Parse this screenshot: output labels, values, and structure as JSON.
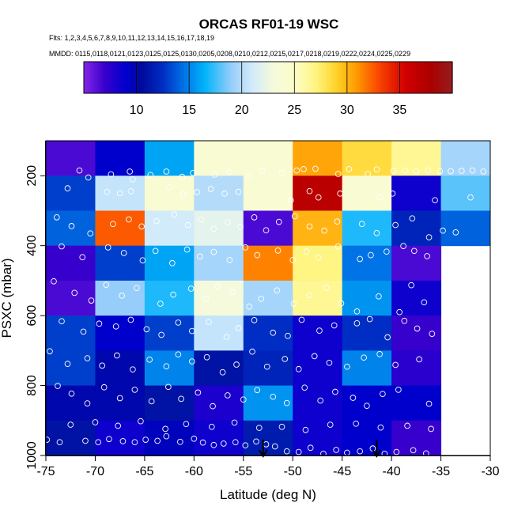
{
  "chart_data": {
    "type": "heatmap",
    "title": "ORCAS RF01-19 WSC",
    "flights_line": "Flts: 1,2,3,4,5,6,7,8,9,10,11,12,13,14,15,16,17,18,19",
    "dates_line": "MMDD: 0115,0118,0121,0123,0125,0125,0130,0205,0208,0210,0212,0215,0217,0218,0219,0222,0224,0225,0229",
    "xlabel": "Latitude (deg N)",
    "ylabel": "PSXC (mbar)",
    "xlim": [
      -75,
      -30
    ],
    "ylim": [
      1000,
      100
    ],
    "x_ticks": [
      -75,
      -70,
      -65,
      -60,
      -55,
      -50,
      -45,
      -40,
      -35,
      -30
    ],
    "x_tick_labels": [
      "-75",
      "-70",
      "-65",
      "-60",
      "-55",
      "-50",
      "-45",
      "-40",
      "-35",
      "-30"
    ],
    "y_ticks": [
      200,
      400,
      600,
      800,
      1000
    ],
    "y_tick_labels": [
      "200",
      "400",
      "600",
      "800",
      "1000"
    ],
    "colorbar": {
      "min": 5,
      "max": 40,
      "ticks": [
        10,
        15,
        20,
        25,
        30,
        35
      ],
      "tick_labels": [
        "10",
        "15",
        "20",
        "25",
        "30",
        "35"
      ]
    },
    "cell_size": {
      "dlat": 5,
      "dp": 100
    },
    "cells": [
      {
        "lat": -70,
        "p": 100,
        "v": 6.5
      },
      {
        "lat": -65,
        "p": 100,
        "v": 9
      },
      {
        "lat": -60,
        "p": 100,
        "v": 16
      },
      {
        "lat": -55,
        "p": 100,
        "v": 24
      },
      {
        "lat": -50,
        "p": 100,
        "v": 24
      },
      {
        "lat": -45,
        "p": 100,
        "v": 30.5
      },
      {
        "lat": -40,
        "p": 100,
        "v": 28.5
      },
      {
        "lat": -35,
        "p": 100,
        "v": 26.5
      },
      {
        "lat": -30,
        "p": 100,
        "v": 19.5
      },
      {
        "lat": -70,
        "p": 200,
        "v": 13
      },
      {
        "lat": -65,
        "p": 200,
        "v": 20.5
      },
      {
        "lat": -60,
        "p": 200,
        "v": 24
      },
      {
        "lat": -55,
        "p": 200,
        "v": 20
      },
      {
        "lat": -50,
        "p": 200,
        "v": 24
      },
      {
        "lat": -45,
        "p": 200,
        "v": 37
      },
      {
        "lat": -40,
        "p": 200,
        "v": 24
      },
      {
        "lat": -35,
        "p": 200,
        "v": 8.5
      },
      {
        "lat": -30,
        "p": 200,
        "v": 18
      },
      {
        "lat": -70,
        "p": 300,
        "v": 14
      },
      {
        "lat": -65,
        "p": 300,
        "v": 32.5
      },
      {
        "lat": -60,
        "p": 300,
        "v": 21
      },
      {
        "lat": -55,
        "p": 300,
        "v": 22
      },
      {
        "lat": -50,
        "p": 300,
        "v": 6.5
      },
      {
        "lat": -45,
        "p": 300,
        "v": 30
      },
      {
        "lat": -40,
        "p": 300,
        "v": 17
      },
      {
        "lat": -35,
        "p": 300,
        "v": 12
      },
      {
        "lat": -30,
        "p": 300,
        "v": 14
      },
      {
        "lat": -70,
        "p": 400,
        "v": 7
      },
      {
        "lat": -65,
        "p": 400,
        "v": 13
      },
      {
        "lat": -60,
        "p": 400,
        "v": 16
      },
      {
        "lat": -55,
        "p": 400,
        "v": 19.5
      },
      {
        "lat": -50,
        "p": 400,
        "v": 31.5
      },
      {
        "lat": -45,
        "p": 400,
        "v": 27
      },
      {
        "lat": -40,
        "p": 400,
        "v": 14.5
      },
      {
        "lat": -35,
        "p": 400,
        "v": 6.5
      },
      {
        "lat": -70,
        "p": 500,
        "v": 6.5
      },
      {
        "lat": -65,
        "p": 500,
        "v": 19
      },
      {
        "lat": -60,
        "p": 500,
        "v": 17
      },
      {
        "lat": -55,
        "p": 500,
        "v": 23
      },
      {
        "lat": -50,
        "p": 500,
        "v": 19.5
      },
      {
        "lat": -45,
        "p": 500,
        "v": 26.5
      },
      {
        "lat": -40,
        "p": 500,
        "v": 15.5
      },
      {
        "lat": -35,
        "p": 500,
        "v": 8.5
      },
      {
        "lat": -70,
        "p": 600,
        "v": 13
      },
      {
        "lat": -65,
        "p": 600,
        "v": 9
      },
      {
        "lat": -60,
        "p": 600,
        "v": 13
      },
      {
        "lat": -55,
        "p": 600,
        "v": 20.5
      },
      {
        "lat": -50,
        "p": 600,
        "v": 12.5
      },
      {
        "lat": -45,
        "p": 600,
        "v": 8.5
      },
      {
        "lat": -40,
        "p": 600,
        "v": 12.5
      },
      {
        "lat": -35,
        "p": 600,
        "v": 7
      },
      {
        "lat": -70,
        "p": 700,
        "v": 13
      },
      {
        "lat": -65,
        "p": 700,
        "v": 10
      },
      {
        "lat": -60,
        "p": 700,
        "v": 15
      },
      {
        "lat": -55,
        "p": 700,
        "v": 11
      },
      {
        "lat": -50,
        "p": 700,
        "v": 12
      },
      {
        "lat": -45,
        "p": 700,
        "v": 8.5
      },
      {
        "lat": -40,
        "p": 700,
        "v": 15
      },
      {
        "lat": -35,
        "p": 700,
        "v": 7.5
      },
      {
        "lat": -70,
        "p": 800,
        "v": 10
      },
      {
        "lat": -65,
        "p": 800,
        "v": 10
      },
      {
        "lat": -60,
        "p": 800,
        "v": 11
      },
      {
        "lat": -55,
        "p": 800,
        "v": 8
      },
      {
        "lat": -50,
        "p": 800,
        "v": 15.5
      },
      {
        "lat": -45,
        "p": 800,
        "v": 8.5
      },
      {
        "lat": -40,
        "p": 800,
        "v": 9
      },
      {
        "lat": -35,
        "p": 800,
        "v": 9
      },
      {
        "lat": -70,
        "p": 900,
        "v": 11
      },
      {
        "lat": -65,
        "p": 900,
        "v": 8.5
      },
      {
        "lat": -60,
        "p": 900,
        "v": 9.5
      },
      {
        "lat": -55,
        "p": 900,
        "v": 8.5
      },
      {
        "lat": -50,
        "p": 900,
        "v": 11.5
      },
      {
        "lat": -45,
        "p": 900,
        "v": 8.5
      },
      {
        "lat": -40,
        "p": 900,
        "v": 9
      },
      {
        "lat": -35,
        "p": 900,
        "v": 7
      }
    ],
    "arrows_latitude": [
      -53,
      -41.5
    ],
    "sample_points": [
      [
        -71.6,
        185
      ],
      [
        -70.7,
        205
      ],
      [
        -68.4,
        196
      ],
      [
        -66.5,
        188
      ],
      [
        -66.2,
        210
      ],
      [
        -64.4,
        198
      ],
      [
        -62.8,
        188
      ],
      [
        -61.2,
        203
      ],
      [
        -60.1,
        192
      ],
      [
        -57.9,
        197
      ],
      [
        -56.4,
        189
      ],
      [
        -54.5,
        203
      ],
      [
        -53.1,
        186
      ],
      [
        -51.1,
        192
      ],
      [
        -49.6,
        185
      ],
      [
        -48.9,
        181
      ],
      [
        -47.7,
        180
      ],
      [
        -45.4,
        195
      ],
      [
        -44.3,
        181
      ],
      [
        -42.4,
        195
      ],
      [
        -41.5,
        182
      ],
      [
        -39.8,
        186
      ],
      [
        -38.6,
        185
      ],
      [
        -37.5,
        187
      ],
      [
        -36.3,
        185
      ],
      [
        -35.1,
        187
      ],
      [
        -34.0,
        187
      ],
      [
        -32.9,
        186
      ],
      [
        -31.8,
        185
      ],
      [
        -30.7,
        188
      ],
      [
        -72.8,
        236
      ],
      [
        -68.8,
        246
      ],
      [
        -67.5,
        250
      ],
      [
        -66.4,
        244
      ],
      [
        -62.5,
        233
      ],
      [
        -61.1,
        253
      ],
      [
        -59.7,
        247
      ],
      [
        -58.3,
        238
      ],
      [
        -56.9,
        251
      ],
      [
        -55.5,
        246
      ],
      [
        -50.2,
        270
      ],
      [
        -48.3,
        244
      ],
      [
        -47.4,
        262
      ],
      [
        -45.2,
        251
      ],
      [
        -41.2,
        262
      ],
      [
        -39.9,
        251
      ],
      [
        -35.6,
        270
      ],
      [
        -32.0,
        262
      ],
      [
        -73.9,
        319
      ],
      [
        -72.4,
        344
      ],
      [
        -70.5,
        365
      ],
      [
        -68.2,
        338
      ],
      [
        -66.6,
        325
      ],
      [
        -65.3,
        345
      ],
      [
        -63.8,
        330
      ],
      [
        -62.0,
        311
      ],
      [
        -60.6,
        341
      ],
      [
        -59.3,
        325
      ],
      [
        -58.0,
        352
      ],
      [
        -56.6,
        333
      ],
      [
        -55.3,
        346
      ],
      [
        -53.9,
        319
      ],
      [
        -52.7,
        356
      ],
      [
        -51.4,
        332
      ],
      [
        -49.8,
        316
      ],
      [
        -48.3,
        345
      ],
      [
        -46.8,
        357
      ],
      [
        -45.5,
        331
      ],
      [
        -43.0,
        338
      ],
      [
        -41.5,
        364
      ],
      [
        -39.6,
        341
      ],
      [
        -37.9,
        322
      ],
      [
        -36.2,
        376
      ],
      [
        -34.8,
        357
      ],
      [
        -33.5,
        362
      ],
      [
        -73.4,
        402
      ],
      [
        -71.3,
        433
      ],
      [
        -68.7,
        405
      ],
      [
        -67.1,
        421
      ],
      [
        -65.2,
        442
      ],
      [
        -63.9,
        415
      ],
      [
        -62.2,
        450
      ],
      [
        -60.7,
        411
      ],
      [
        -59.4,
        431
      ],
      [
        -58.0,
        418
      ],
      [
        -56.4,
        441
      ],
      [
        -54.8,
        405
      ],
      [
        -53.6,
        427
      ],
      [
        -51.5,
        414
      ],
      [
        -50.0,
        441
      ],
      [
        -48.6,
        417
      ],
      [
        -47.4,
        434
      ],
      [
        -45.4,
        402
      ],
      [
        -43.2,
        438
      ],
      [
        -42.1,
        427
      ],
      [
        -40.5,
        417
      ],
      [
        -38.8,
        401
      ],
      [
        -37.7,
        415
      ],
      [
        -36.4,
        430
      ],
      [
        -74.2,
        502
      ],
      [
        -72.1,
        535
      ],
      [
        -70.4,
        557
      ],
      [
        -68.9,
        512
      ],
      [
        -67.3,
        543
      ],
      [
        -65.8,
        521
      ],
      [
        -63.4,
        566
      ],
      [
        -62.1,
        540
      ],
      [
        -60.3,
        523
      ],
      [
        -58.8,
        552
      ],
      [
        -57.6,
        517
      ],
      [
        -56.1,
        533
      ],
      [
        -54.4,
        574
      ],
      [
        -53.2,
        552
      ],
      [
        -51.6,
        528
      ],
      [
        -49.9,
        566
      ],
      [
        -48.3,
        542
      ],
      [
        -46.6,
        520
      ],
      [
        -45.1,
        565
      ],
      [
        -43.5,
        588
      ],
      [
        -41.3,
        545
      ],
      [
        -39.2,
        590
      ],
      [
        -38.0,
        513
      ],
      [
        -36.7,
        562
      ],
      [
        -73.4,
        616
      ],
      [
        -71.2,
        646
      ],
      [
        -69.6,
        623
      ],
      [
        -67.9,
        631
      ],
      [
        -66.4,
        612
      ],
      [
        -64.8,
        639
      ],
      [
        -63.3,
        655
      ],
      [
        -61.6,
        620
      ],
      [
        -60.2,
        644
      ],
      [
        -58.5,
        618
      ],
      [
        -56.7,
        661
      ],
      [
        -55.5,
        636
      ],
      [
        -53.9,
        613
      ],
      [
        -52.0,
        649
      ],
      [
        -50.5,
        658
      ],
      [
        -49.1,
        612
      ],
      [
        -47.3,
        643
      ],
      [
        -45.8,
        628
      ],
      [
        -43.5,
        622
      ],
      [
        -42.2,
        610
      ],
      [
        -40.4,
        662
      ],
      [
        -38.7,
        615
      ],
      [
        -37.4,
        637
      ],
      [
        -35.9,
        652
      ],
      [
        -74.6,
        702
      ],
      [
        -72.8,
        738
      ],
      [
        -70.8,
        722
      ],
      [
        -69.3,
        743
      ],
      [
        -67.8,
        714
      ],
      [
        -66.2,
        754
      ],
      [
        -64.5,
        726
      ],
      [
        -62.8,
        745
      ],
      [
        -61.6,
        711
      ],
      [
        -60.2,
        731
      ],
      [
        -58.7,
        719
      ],
      [
        -57.1,
        762
      ],
      [
        -55.7,
        740
      ],
      [
        -54.1,
        703
      ],
      [
        -52.6,
        746
      ],
      [
        -50.8,
        724
      ],
      [
        -49.4,
        753
      ],
      [
        -47.8,
        716
      ],
      [
        -46.3,
        735
      ],
      [
        -44.5,
        746
      ],
      [
        -42.8,
        720
      ],
      [
        -41.2,
        710
      ],
      [
        -39.6,
        741
      ],
      [
        -37.2,
        725
      ],
      [
        -73.8,
        801
      ],
      [
        -72.4,
        823
      ],
      [
        -70.8,
        851
      ],
      [
        -69.1,
        805
      ],
      [
        -67.5,
        836
      ],
      [
        -66.0,
        812
      ],
      [
        -64.3,
        845
      ],
      [
        -62.6,
        804
      ],
      [
        -61.3,
        838
      ],
      [
        -59.6,
        820
      ],
      [
        -58.1,
        859
      ],
      [
        -56.6,
        828
      ],
      [
        -55.0,
        840
      ],
      [
        -53.6,
        813
      ],
      [
        -52.0,
        832
      ],
      [
        -50.6,
        850
      ],
      [
        -48.8,
        806
      ],
      [
        -47.2,
        843
      ],
      [
        -45.7,
        818
      ],
      [
        -43.9,
        835
      ],
      [
        -42.5,
        858
      ],
      [
        -40.9,
        824
      ],
      [
        -39.3,
        812
      ],
      [
        -36.2,
        852
      ],
      [
        -74.9,
        955
      ],
      [
        -73.6,
        962
      ],
      [
        -71.0,
        958
      ],
      [
        -69.7,
        962
      ],
      [
        -68.6,
        953
      ],
      [
        -67.2,
        959
      ],
      [
        -66.0,
        962
      ],
      [
        -64.9,
        955
      ],
      [
        -63.7,
        958
      ],
      [
        -62.8,
        945
      ],
      [
        -61.4,
        961
      ],
      [
        -60.0,
        952
      ],
      [
        -59.1,
        963
      ],
      [
        -58.0,
        970
      ],
      [
        -57.0,
        966
      ],
      [
        -55.8,
        962
      ],
      [
        -54.8,
        971
      ],
      [
        -53.7,
        960
      ],
      [
        -52.7,
        968
      ],
      [
        -51.8,
        974
      ],
      [
        -50.6,
        988
      ],
      [
        -49.4,
        990
      ],
      [
        -48.2,
        978
      ],
      [
        -46.9,
        995
      ],
      [
        -45.6,
        984
      ],
      [
        -44.5,
        992
      ],
      [
        -43.2,
        988
      ],
      [
        -41.9,
        980
      ],
      [
        -40.7,
        995
      ],
      [
        -39.5,
        990
      ],
      [
        -37.8,
        985
      ],
      [
        -36.5,
        994
      ],
      [
        -72.5,
        912
      ],
      [
        -70.0,
        905
      ],
      [
        -67.7,
        915
      ],
      [
        -65.4,
        902
      ],
      [
        -62.9,
        924
      ],
      [
        -60.8,
        910
      ],
      [
        -58.2,
        918
      ],
      [
        -55.9,
        906
      ],
      [
        -53.4,
        921
      ],
      [
        -51.1,
        918
      ],
      [
        -48.7,
        927
      ],
      [
        -46.2,
        912
      ],
      [
        -43.6,
        909
      ],
      [
        -41.1,
        920
      ],
      [
        -38.4,
        915
      ],
      [
        -36.0,
        924
      ]
    ]
  }
}
